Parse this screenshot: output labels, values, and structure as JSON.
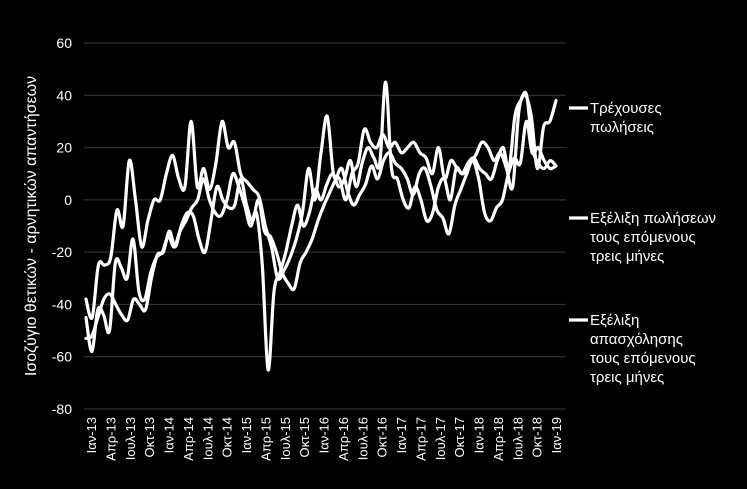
{
  "chart_data": {
    "type": "line",
    "ylabel": "Ισοζύγιο θετικών - αρνητικών απαντήσεων",
    "ylim": [
      -80,
      60
    ],
    "yticks": [
      60,
      40,
      20,
      0,
      -20,
      -40,
      -60,
      -80
    ],
    "grid": "horizontal",
    "legend_position": "right",
    "x_tick_labels": [
      "Ιαν-13",
      "Απρ-13",
      "Ιουλ-13",
      "Οκτ-13",
      "Ιαν-14",
      "Απρ-14",
      "Ιουλ-14",
      "Οκτ-14",
      "Ιαν-15",
      "Απρ-15",
      "Ιουλ-15",
      "Οκτ-15",
      "Ιαν-16",
      "Απρ-16",
      "Ιουλ-16",
      "Οκτ-16",
      "Ιαν-17",
      "Απρ-17",
      "Ιουλ-17",
      "Οκτ-17",
      "Ιαν-18",
      "Απρ-18",
      "Ιουλ-18",
      "Οκτ-18",
      "Ιαν-19"
    ],
    "series_style": {
      "color": "#ffffff"
    },
    "series": [
      {
        "name": "Τρέχουσες πωλήσεις",
        "values": [
          -53,
          -52,
          -45,
          -38,
          -36,
          -40,
          -44,
          -46,
          -38,
          -40,
          -42,
          -30,
          -21,
          -20,
          -12,
          -18,
          -10,
          -5,
          -6,
          -15,
          -20,
          -8,
          5,
          0,
          -3,
          -2,
          8,
          -2,
          -8,
          0,
          -12,
          -14,
          -20,
          -28,
          -32,
          -34,
          -24,
          -20,
          -15,
          -8,
          -2,
          3,
          8,
          12,
          3,
          -2,
          2,
          6,
          13,
          8,
          15,
          18,
          14,
          12,
          8,
          2,
          10,
          12,
          5,
          -4,
          -7,
          -13,
          -2,
          4,
          10,
          15,
          8,
          -5,
          -8,
          -3,
          0,
          10,
          16,
          14,
          30,
          18,
          20,
          15,
          12,
          13
        ],
        "legend_y": 120
      },
      {
        "name": "Εξέλιξη πωλήσεων τους επόμενους τρείς μήνες",
        "values": [
          -38,
          -45,
          -25,
          -25,
          -22,
          -4,
          -10,
          15,
          0,
          -18,
          -8,
          0,
          0,
          10,
          17,
          8,
          5,
          30,
          5,
          12,
          4,
          14,
          30,
          20,
          22,
          10,
          7,
          4,
          1,
          -10,
          -18,
          -30,
          -27,
          -22,
          -15,
          -5,
          12,
          0,
          18,
          32,
          10,
          8,
          0,
          10,
          14,
          27,
          22,
          20,
          25,
          20,
          22,
          18,
          20,
          22,
          18,
          16,
          10,
          20,
          8,
          15,
          12,
          10,
          14,
          17,
          22,
          20,
          15,
          18,
          12,
          5,
          34,
          40,
          32,
          12,
          28,
          30,
          38
        ],
        "legend_y": 220
      },
      {
        "name": "Εξέλιξη απασχόλησης τους επόμενους τρείς μήνες",
        "values": [
          -45,
          -58,
          -42,
          -44,
          -50,
          -24,
          -26,
          -30,
          -15,
          -35,
          -38,
          -28,
          -22,
          -20,
          -14,
          -18,
          -12,
          -8,
          -3,
          0,
          8,
          0,
          -5,
          -6,
          0,
          10,
          5,
          -2,
          -10,
          -5,
          -25,
          -65,
          -35,
          -28,
          -20,
          -10,
          -2,
          -10,
          -5,
          4,
          0,
          6,
          10,
          5,
          8,
          15,
          5,
          14,
          20,
          16,
          14,
          45,
          12,
          8,
          0,
          -3,
          5,
          0,
          -8,
          -5,
          5,
          8,
          0,
          12,
          10,
          14,
          16,
          12,
          10,
          8,
          15,
          20,
          12,
          32,
          38,
          40,
          20,
          14,
          12,
          15,
          13
        ],
        "legend_y": 320
      }
    ],
    "legend": [
      {
        "lines": [
          "Τρέχουσες",
          "πωλήσεις"
        ]
      },
      {
        "lines": [
          "Εξέλιξη πωλήσεων",
          "τους επόμενους",
          "τρεις μήνες"
        ]
      },
      {
        "lines": [
          "Εξέλιξη",
          "απασχόλησης",
          "τους επόμενους",
          "τρεις μήνες"
        ]
      }
    ]
  }
}
